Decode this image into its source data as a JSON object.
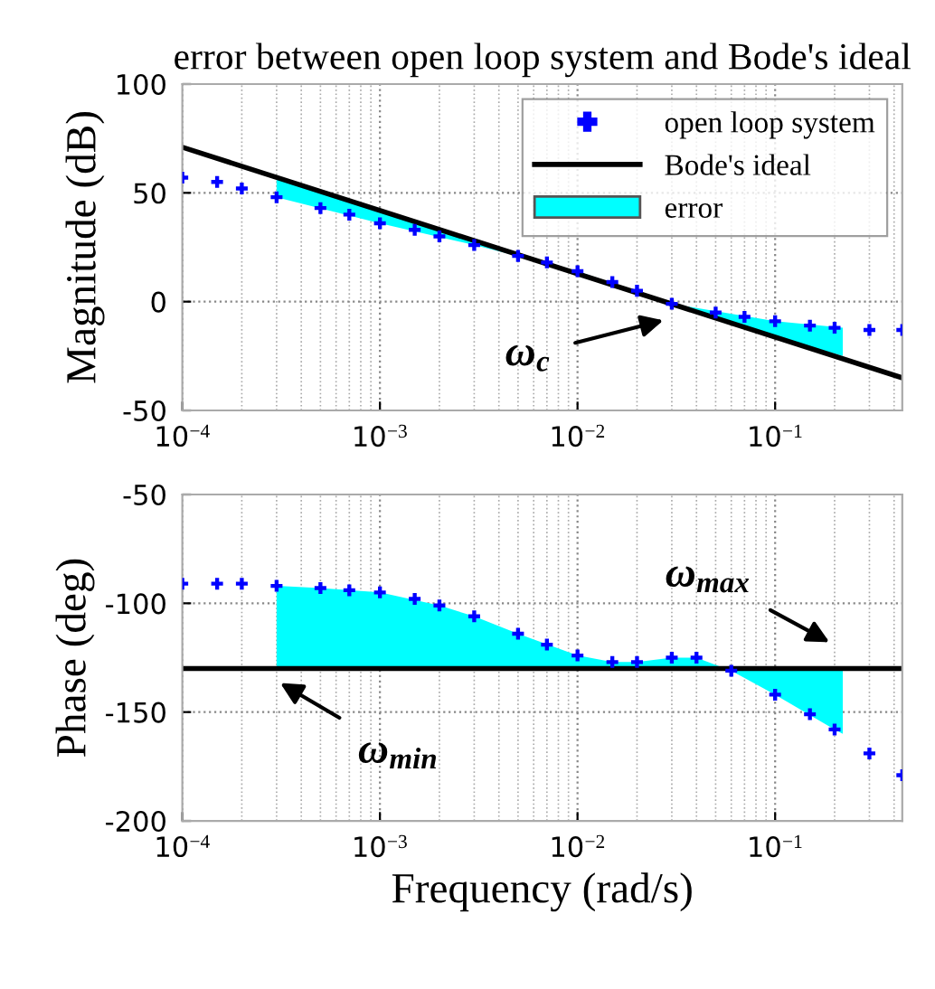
{
  "chart_data": [
    {
      "type": "line",
      "title": "error between open loop system and Bode's ideal",
      "ylabel": "Magnitude (dB)",
      "xlim": [
        0.0001,
        0.44
      ],
      "ylim": [
        -50,
        100
      ],
      "yticks": [
        -50,
        0,
        50,
        100
      ],
      "log": "x",
      "xticks": [
        {
          "value": 0.0001,
          "label": "10$^{−4}$"
        },
        {
          "value": 0.001,
          "label": "10$^{−3}$"
        },
        {
          "value": 0.01,
          "label": "10$^{−2}$"
        },
        {
          "value": 0.1,
          "label": "10$^{−1}$"
        }
      ],
      "grid": true,
      "legend": "top right",
      "series": [
        {
          "name": "open loop system",
          "type": "scatter",
          "marker": "cross",
          "color": "#0000ff",
          "x": [
            0.0001,
            0.00015,
            0.0002,
            0.0003,
            0.0005,
            0.0007,
            0.001,
            0.0015,
            0.002,
            0.003,
            0.005,
            0.007,
            0.01,
            0.015,
            0.02,
            0.03,
            0.05,
            0.07,
            0.1,
            0.15,
            0.2,
            0.3,
            0.44
          ],
          "values": [
            57,
            55,
            52,
            48,
            43,
            40,
            36,
            33,
            30,
            26,
            21,
            18,
            14,
            9,
            5,
            -1,
            -5,
            -7,
            -9,
            -11,
            -12,
            -13,
            -13
          ]
        },
        {
          "name": "Bode's ideal",
          "color": "#000000",
          "x": [
            0.0001,
            0.44
          ],
          "values": [
            71,
            -35
          ]
        },
        {
          "name": "error",
          "type": "area",
          "color": "#00ffff",
          "x": [
            0.0003,
            0.001,
            0.003,
            0.01,
            0.03,
            0.1,
            0.22,
            0.22,
            0.1,
            0.03,
            0.01,
            0.003,
            0.001,
            0.0003
          ],
          "values": [
            57,
            42,
            28,
            13,
            -1,
            -16,
            -25,
            -12,
            -9,
            -1,
            14,
            26,
            36,
            48
          ]
        }
      ],
      "annotations": [
        "ω$_{c}$"
      ]
    },
    {
      "type": "line",
      "xlabel": "Frequency (rad/s)",
      "ylabel": "Phase (deg)",
      "xlim": [
        0.0001,
        0.44
      ],
      "ylim": [
        -200,
        -50
      ],
      "yticks": [
        -200,
        -150,
        -100,
        -50
      ],
      "log": "x",
      "xticks": [
        {
          "value": 0.0001,
          "label": "10$^{−4}$"
        },
        {
          "value": 0.001,
          "label": "10$^{−3}$"
        },
        {
          "value": 0.01,
          "label": "10$^{−2}$"
        },
        {
          "value": 0.1,
          "label": "10$^{−1}$"
        }
      ],
      "grid": true,
      "series": [
        {
          "type": "scatter",
          "marker": "cross",
          "color": "#0000ff",
          "x": [
            0.0001,
            0.00015,
            0.0002,
            0.0003,
            0.0005,
            0.0007,
            0.001,
            0.0015,
            0.002,
            0.003,
            0.005,
            0.007,
            0.01,
            0.015,
            0.02,
            0.03,
            0.04,
            0.06,
            0.1,
            0.15,
            0.2,
            0.3,
            0.44
          ],
          "values": [
            -91,
            -91,
            -91,
            -92,
            -93,
            -94,
            -95,
            -98,
            -101,
            -106,
            -114,
            -119,
            -124,
            -127,
            -127,
            -125,
            -125,
            -131,
            -142,
            -151,
            -158,
            -169,
            -179
          ]
        },
        {
          "color": "#000000",
          "x": [
            0.0001,
            0.44
          ],
          "values": [
            -130,
            -130
          ]
        },
        {
          "type": "area",
          "color": "#00ffff",
          "x": [
            0.0003,
            0.0005,
            0.001,
            0.002,
            0.003,
            0.005,
            0.01,
            0.015,
            0.02,
            0.03,
            0.04,
            0.06,
            0.1,
            0.2,
            0.22,
            0.22,
            0.0003
          ],
          "values": [
            -92,
            -93,
            -95,
            -101,
            -106,
            -114,
            -124,
            -127,
            -127,
            -125,
            -125,
            -131,
            -142,
            -158,
            -160,
            -130,
            -130
          ]
        }
      ],
      "annotations": [
        "ω$_{min}$",
        "ω$_{max}$"
      ]
    }
  ]
}
